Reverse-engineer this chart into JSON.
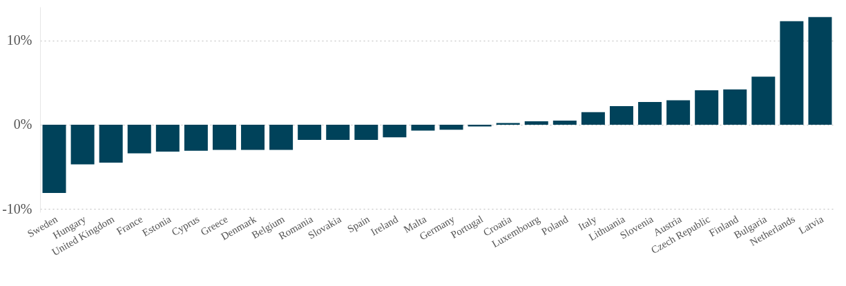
{
  "chart_data": {
    "type": "bar",
    "categories": [
      "Sweden",
      "Hungary",
      "United Kingdom",
      "France",
      "Estonia",
      "Cyprus",
      "Greece",
      "Denmark",
      "Belgium",
      "Romania",
      "Slovakia",
      "Spain",
      "Ireland",
      "Malta",
      "Germany",
      "Portugal",
      "Croatia",
      "Luxembourg",
      "Poland",
      "Italy",
      "Lithuania",
      "Slovenia",
      "Austria",
      "Czech Republic",
      "Finland",
      "Bulgaria",
      "Netherlands",
      "Latvia"
    ],
    "values": [
      -8.1,
      -4.7,
      -4.5,
      -3.4,
      -3.2,
      -3.1,
      -3.0,
      -3.0,
      -3.0,
      -1.8,
      -1.8,
      -1.8,
      -1.5,
      -0.7,
      -0.6,
      -0.2,
      0.2,
      0.4,
      0.5,
      1.5,
      2.2,
      2.7,
      2.9,
      4.1,
      4.2,
      5.7,
      12.3,
      12.8
    ],
    "color": "#00425a",
    "ylim": [
      -10.4,
      14
    ],
    "yticks": [
      {
        "value": -10,
        "label": "-10%"
      },
      {
        "value": 0,
        "label": "0%"
      },
      {
        "value": 10,
        "label": "10%"
      }
    ],
    "grid": "y"
  }
}
